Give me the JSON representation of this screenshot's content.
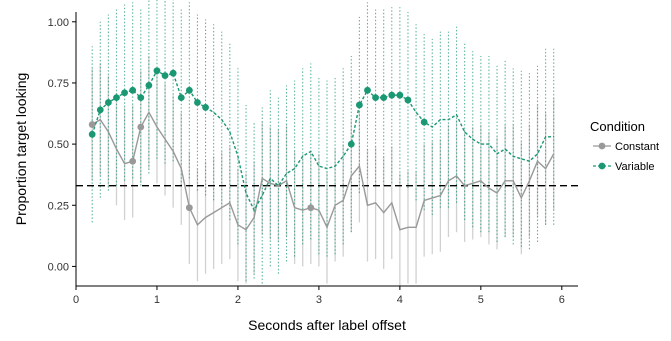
{
  "chart_data": {
    "type": "line",
    "xlabel": "Seconds after label offset",
    "ylabel": "Proportion target looking",
    "xlim": [
      0,
      6.2
    ],
    "ylim": [
      -0.08,
      1.04
    ],
    "x_ticks": [
      0,
      1,
      2,
      3,
      4,
      5,
      6
    ],
    "y_ticks": [
      0.0,
      0.25,
      0.5,
      0.75,
      1.0
    ],
    "x_tick_labels": [
      "0",
      "1",
      "2",
      "3",
      "4",
      "5",
      "6"
    ],
    "y_tick_labels": [
      "0.00",
      "0.25",
      "0.50",
      "0.75",
      "1.00"
    ],
    "grid": false,
    "reference_line": {
      "y": 0.33,
      "style": "dashed",
      "color": "#000000"
    },
    "legend": {
      "title": "Condition",
      "placement": "right",
      "entries": [
        {
          "label": "Constant",
          "color": "#999999",
          "style": "solid"
        },
        {
          "label": "Variable",
          "color": "#1a9873",
          "style": "dashed"
        }
      ]
    },
    "x": [
      0.2,
      0.3,
      0.4,
      0.5,
      0.6,
      0.7,
      0.8,
      0.9,
      1.0,
      1.1,
      1.2,
      1.3,
      1.4,
      1.5,
      1.6,
      1.7,
      1.8,
      1.9,
      2.0,
      2.1,
      2.2,
      2.3,
      2.4,
      2.5,
      2.6,
      2.7,
      2.8,
      2.9,
      3.0,
      3.1,
      3.2,
      3.3,
      3.4,
      3.5,
      3.6,
      3.7,
      3.8,
      3.9,
      4.0,
      4.1,
      4.2,
      4.3,
      4.4,
      4.5,
      4.6,
      4.7,
      4.8,
      4.9,
      5.0,
      5.1,
      5.2,
      5.3,
      5.4,
      5.5,
      5.6,
      5.7,
      5.8,
      5.9
    ],
    "series": [
      {
        "name": "Constant",
        "color": "#999999",
        "line_style": "solid",
        "values": [
          0.58,
          0.6,
          0.55,
          0.48,
          0.42,
          0.43,
          0.57,
          0.63,
          0.57,
          0.52,
          0.47,
          0.4,
          0.24,
          0.17,
          0.2,
          0.22,
          0.24,
          0.26,
          0.17,
          0.15,
          0.2,
          0.36,
          0.34,
          0.33,
          0.35,
          0.24,
          0.23,
          0.24,
          0.23,
          0.16,
          0.25,
          0.27,
          0.37,
          0.41,
          0.25,
          0.26,
          0.22,
          0.26,
          0.15,
          0.16,
          0.16,
          0.27,
          0.28,
          0.29,
          0.35,
          0.37,
          0.33,
          0.34,
          0.35,
          0.32,
          0.3,
          0.35,
          0.35,
          0.28,
          0.35,
          0.43,
          0.4,
          0.46
        ],
        "lower": [
          0.35,
          0.37,
          0.32,
          0.25,
          0.19,
          0.2,
          0.34,
          0.4,
          0.34,
          0.29,
          0.24,
          0.17,
          0.01,
          -0.06,
          -0.03,
          -0.01,
          0.01,
          0.03,
          -0.06,
          -0.07,
          -0.03,
          0.13,
          0.11,
          0.1,
          0.12,
          0.01,
          0.0,
          0.01,
          0.0,
          -0.07,
          0.02,
          0.04,
          0.14,
          0.18,
          0.02,
          0.03,
          -0.01,
          0.03,
          -0.08,
          -0.07,
          -0.07,
          0.04,
          0.05,
          0.06,
          0.12,
          0.14,
          0.1,
          0.11,
          0.12,
          0.09,
          0.07,
          0.12,
          0.12,
          0.05,
          0.12,
          0.2,
          0.17,
          0.23
        ],
        "upper": [
          0.81,
          0.83,
          0.78,
          0.71,
          0.65,
          0.66,
          0.8,
          0.86,
          0.8,
          0.75,
          0.7,
          0.63,
          0.47,
          0.4,
          0.43,
          0.45,
          0.47,
          0.49,
          0.4,
          0.38,
          0.43,
          0.59,
          0.57,
          0.56,
          0.58,
          0.47,
          0.46,
          0.47,
          0.46,
          0.39,
          0.48,
          0.5,
          0.6,
          0.64,
          0.48,
          0.49,
          0.45,
          0.49,
          0.38,
          0.39,
          0.39,
          0.5,
          0.51,
          0.52,
          0.58,
          0.6,
          0.56,
          0.57,
          0.58,
          0.55,
          0.53,
          0.58,
          0.58,
          0.51,
          0.58,
          0.66,
          0.63,
          0.69
        ],
        "marked_points": [
          0.2,
          0.7,
          0.8,
          1.4,
          2.9
        ]
      },
      {
        "name": "Variable",
        "color": "#1a9873",
        "line_style": "dashed",
        "values": [
          0.54,
          0.64,
          0.67,
          0.69,
          0.71,
          0.72,
          0.69,
          0.74,
          0.8,
          0.78,
          0.79,
          0.69,
          0.72,
          0.67,
          0.65,
          0.63,
          0.6,
          0.55,
          0.45,
          0.3,
          0.23,
          0.29,
          0.36,
          0.33,
          0.38,
          0.4,
          0.45,
          0.47,
          0.41,
          0.4,
          0.41,
          0.45,
          0.5,
          0.66,
          0.72,
          0.69,
          0.69,
          0.7,
          0.7,
          0.68,
          0.63,
          0.59,
          0.57,
          0.6,
          0.6,
          0.62,
          0.55,
          0.52,
          0.5,
          0.5,
          0.46,
          0.48,
          0.45,
          0.44,
          0.43,
          0.46,
          0.53,
          0.53
        ],
        "lower": [
          0.18,
          0.28,
          0.31,
          0.33,
          0.35,
          0.36,
          0.33,
          0.38,
          0.44,
          0.42,
          0.43,
          0.33,
          0.36,
          0.31,
          0.29,
          0.27,
          0.24,
          0.19,
          0.09,
          -0.06,
          -0.05,
          -0.07,
          0.0,
          -0.03,
          0.02,
          0.04,
          0.09,
          0.11,
          0.05,
          0.04,
          0.05,
          0.09,
          0.14,
          0.3,
          0.36,
          0.33,
          0.33,
          0.34,
          0.34,
          0.32,
          0.27,
          0.23,
          0.21,
          0.24,
          0.24,
          0.26,
          0.19,
          0.16,
          0.14,
          0.14,
          0.1,
          0.12,
          0.09,
          0.08,
          0.07,
          0.1,
          0.17,
          0.17
        ],
        "upper": [
          0.9,
          1.0,
          1.03,
          1.05,
          1.07,
          1.08,
          1.05,
          1.1,
          1.16,
          1.14,
          1.15,
          1.05,
          1.08,
          1.03,
          1.01,
          0.99,
          0.96,
          0.91,
          0.81,
          0.66,
          0.59,
          0.65,
          0.72,
          0.69,
          0.74,
          0.76,
          0.81,
          0.83,
          0.77,
          0.76,
          0.77,
          0.81,
          0.86,
          1.02,
          1.08,
          1.05,
          1.05,
          1.06,
          1.06,
          1.04,
          0.99,
          0.95,
          0.93,
          0.96,
          0.96,
          0.98,
          0.91,
          0.88,
          0.86,
          0.86,
          0.82,
          0.84,
          0.81,
          0.8,
          0.79,
          0.82,
          0.89,
          0.89
        ],
        "marked_points": [
          0.2,
          0.3,
          0.4,
          0.5,
          0.6,
          0.7,
          0.8,
          0.9,
          1.0,
          1.1,
          1.2,
          1.3,
          1.4,
          1.5,
          1.6,
          3.4,
          3.5,
          3.6,
          3.7,
          3.8,
          3.9,
          4.0,
          4.1,
          4.3
        ]
      }
    ]
  }
}
